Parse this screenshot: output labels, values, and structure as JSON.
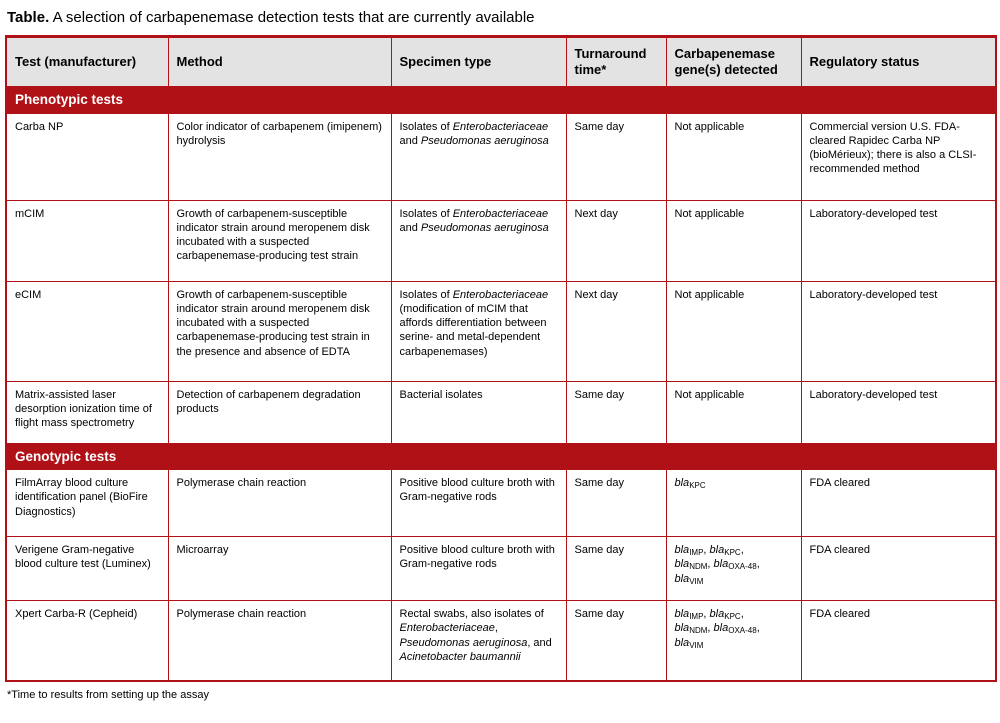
{
  "title": {
    "label": "Table.",
    "text": "A selection of carbapenemase detection tests that are currently available"
  },
  "footnote": "*Time to results from setting up the assay",
  "colors": {
    "accent": "#b01116",
    "header_bg": "#e4e3e3",
    "section_text": "#ffffff"
  },
  "table": {
    "columns": [
      {
        "label": "Test (manufacturer)"
      },
      {
        "label": "Method"
      },
      {
        "label": "Specimen type"
      },
      {
        "label": "Turnaround time*"
      },
      {
        "label": "Carbapenemase gene(s) detected"
      },
      {
        "label": "Regulatory status"
      }
    ],
    "sections": [
      {
        "id": "phenotypic",
        "header": "Phenotypic tests",
        "rows": [
          [
            [
              {
                "t": "Carba NP"
              }
            ],
            [
              {
                "t": "Color indicator of carbapenem (imipenem) hydrolysis"
              }
            ],
            [
              {
                "t": "Isolates of "
              },
              {
                "t": "Enterobacteriaceae",
                "i": true
              },
              {
                "t": " and "
              },
              {
                "t": "Pseudomonas aeruginosa",
                "i": true
              }
            ],
            [
              {
                "t": "Same day"
              }
            ],
            [
              {
                "t": "Not applicable"
              }
            ],
            [
              {
                "t": "Commercial version U.S. FDA-cleared Rapidec Carba NP (bioMérieux); there is also a CLSI-recommended method"
              }
            ]
          ],
          [
            [
              {
                "t": "mCIM"
              }
            ],
            [
              {
                "t": "Growth of carbapenem-susceptible indicator strain around meropenem disk incubated with a suspected carbapenemase-producing test strain"
              }
            ],
            [
              {
                "t": "Isolates of "
              },
              {
                "t": "Enterobacteriaceae",
                "i": true
              },
              {
                "t": " and "
              },
              {
                "t": "Pseudomonas aeruginosa",
                "i": true
              }
            ],
            [
              {
                "t": "Next day"
              }
            ],
            [
              {
                "t": "Not applicable"
              }
            ],
            [
              {
                "t": "Laboratory-developed test"
              }
            ]
          ],
          [
            [
              {
                "t": "eCIM"
              }
            ],
            [
              {
                "t": "Growth of carbapenem-susceptible indicator strain around meropenem disk incubated with a suspected carbapenemase-producing test strain in the presence and absence of EDTA"
              }
            ],
            [
              {
                "t": "Isolates of "
              },
              {
                "t": "Enterobacteriaceae",
                "i": true
              },
              {
                "t": " (modification of mCIM that affords differentiation between serine- and metal-dependent carbapenemases)"
              }
            ],
            [
              {
                "t": "Next day"
              }
            ],
            [
              {
                "t": "Not applicable"
              }
            ],
            [
              {
                "t": "Laboratory-developed test"
              }
            ]
          ],
          [
            [
              {
                "t": "Matrix-assisted laser desorption ionization time of flight mass spectrometry"
              }
            ],
            [
              {
                "t": "Detection of carbapenem degradation products"
              }
            ],
            [
              {
                "t": "Bacterial isolates"
              }
            ],
            [
              {
                "t": "Same day"
              }
            ],
            [
              {
                "t": "Not applicable"
              }
            ],
            [
              {
                "t": "Laboratory-developed test"
              }
            ]
          ]
        ]
      },
      {
        "id": "genotypic",
        "header": "Genotypic tests",
        "rows": [
          [
            [
              {
                "t": "FilmArray blood culture identification panel (BioFire Diagnostics)"
              }
            ],
            [
              {
                "t": "Polymerase chain reaction"
              }
            ],
            [
              {
                "t": "Positive blood culture broth with Gram-negative rods"
              }
            ],
            [
              {
                "t": "Same day"
              }
            ],
            [
              {
                "t": "bla",
                "i": true
              },
              {
                "t": "KPC",
                "sub": true
              }
            ],
            [
              {
                "t": "FDA cleared"
              }
            ]
          ],
          [
            [
              {
                "t": "Verigene Gram-negative blood culture test (Luminex)"
              }
            ],
            [
              {
                "t": "Microarray"
              }
            ],
            [
              {
                "t": "Positive blood culture broth with Gram-negative rods"
              }
            ],
            [
              {
                "t": "Same day"
              }
            ],
            [
              {
                "t": "bla",
                "i": true
              },
              {
                "t": "IMP",
                "sub": true
              },
              {
                "t": ", "
              },
              {
                "t": "bla",
                "i": true
              },
              {
                "t": "KPC",
                "sub": true
              },
              {
                "t": ","
              },
              {
                "br": true
              },
              {
                "t": "bla",
                "i": true
              },
              {
                "t": "NDM",
                "sub": true
              },
              {
                "t": ", "
              },
              {
                "t": "bla",
                "i": true
              },
              {
                "t": "OXA-48",
                "sub": true
              },
              {
                "t": ","
              },
              {
                "br": true
              },
              {
                "t": "bla",
                "i": true
              },
              {
                "t": "VIM",
                "sub": true
              }
            ],
            [
              {
                "t": "FDA cleared"
              }
            ]
          ],
          [
            [
              {
                "t": "Xpert Carba-R (Cepheid)"
              }
            ],
            [
              {
                "t": "Polymerase chain reaction"
              }
            ],
            [
              {
                "t": "Rectal swabs, also isolates of "
              },
              {
                "t": "Enterobacteriaceae",
                "i": true
              },
              {
                "t": ", "
              },
              {
                "t": "Pseudomonas aeruginosa",
                "i": true
              },
              {
                "t": ", and "
              },
              {
                "t": "Acinetobacter baumannii",
                "i": true
              }
            ],
            [
              {
                "t": "Same day"
              }
            ],
            [
              {
                "t": "bla",
                "i": true
              },
              {
                "t": "IMP",
                "sub": true
              },
              {
                "t": ", "
              },
              {
                "t": "bla",
                "i": true
              },
              {
                "t": "KPC",
                "sub": true
              },
              {
                "t": ","
              },
              {
                "br": true
              },
              {
                "t": "bla",
                "i": true
              },
              {
                "t": "NDM",
                "sub": true
              },
              {
                "t": ", "
              },
              {
                "t": "bla",
                "i": true
              },
              {
                "t": "OXA-48",
                "sub": true
              },
              {
                "t": ","
              },
              {
                "br": true
              },
              {
                "t": "bla",
                "i": true
              },
              {
                "t": "VIM",
                "sub": true
              }
            ],
            [
              {
                "t": "FDA cleared"
              }
            ]
          ]
        ]
      }
    ]
  }
}
